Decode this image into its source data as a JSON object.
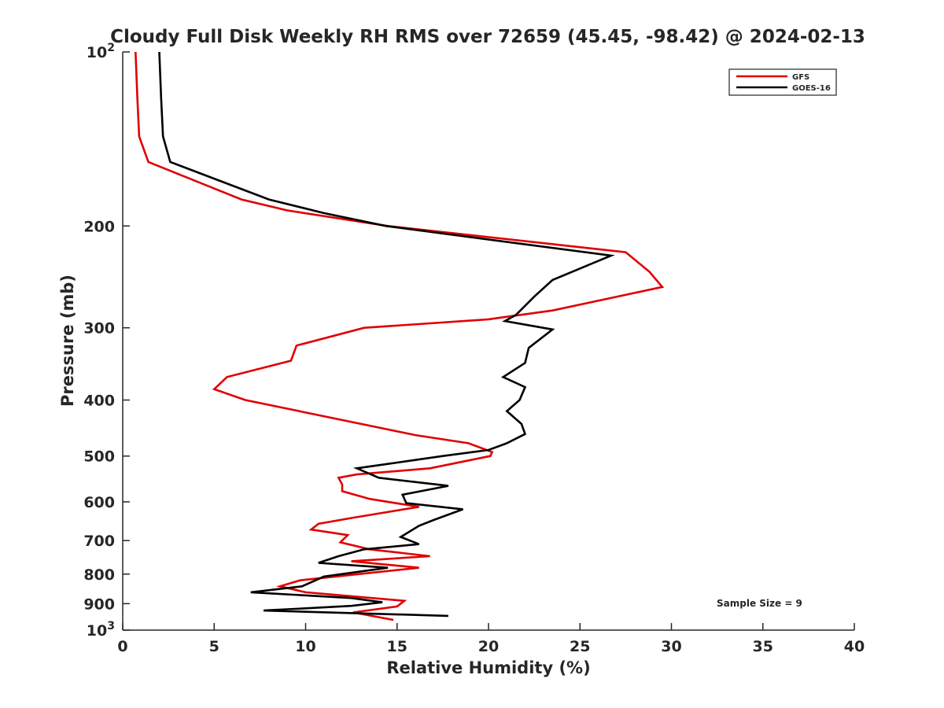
{
  "chart_data": {
    "type": "line",
    "title": "Cloudy Full Disk Weekly RH RMS over 72659 (45.45, -98.42) @ 2024-02-13",
    "xlabel": "Relative Humidity (%)",
    "ylabel": "Pressure (mb)",
    "xlim": [
      0,
      40
    ],
    "ylim": [
      100,
      1000
    ],
    "yscale": "log",
    "y_reversed": true,
    "grid": false,
    "legend_position": "top-right",
    "x_ticks": [
      "0",
      "5",
      "10",
      "15",
      "20",
      "25",
      "30",
      "35",
      "40"
    ],
    "y_ticks": [
      {
        "value": 100,
        "label": "10",
        "sup": "2"
      },
      {
        "value": 200,
        "label": "200",
        "sup": ""
      },
      {
        "value": 300,
        "label": "300",
        "sup": ""
      },
      {
        "value": 400,
        "label": "400",
        "sup": ""
      },
      {
        "value": 500,
        "label": "500",
        "sup": ""
      },
      {
        "value": 600,
        "label": "600",
        "sup": ""
      },
      {
        "value": 700,
        "label": "700",
        "sup": ""
      },
      {
        "value": 800,
        "label": "800",
        "sup": ""
      },
      {
        "value": 900,
        "label": "900",
        "sup": ""
      },
      {
        "value": 1000,
        "label": "10",
        "sup": "3"
      }
    ],
    "annotation": "Sample Size = 9",
    "series": [
      {
        "name": "GFS",
        "color": "#e00000",
        "points": [
          [
            0.7,
            100
          ],
          [
            0.8,
            120
          ],
          [
            0.9,
            140
          ],
          [
            1.4,
            155
          ],
          [
            6.5,
            180
          ],
          [
            9.0,
            188
          ],
          [
            14.5,
            200
          ],
          [
            27.5,
            222
          ],
          [
            28.8,
            240
          ],
          [
            29.5,
            255
          ],
          [
            23.5,
            280
          ],
          [
            20.0,
            290
          ],
          [
            13.2,
            300
          ],
          [
            9.5,
            322
          ],
          [
            9.2,
            342
          ],
          [
            5.7,
            365
          ],
          [
            5.0,
            383
          ],
          [
            6.7,
            400
          ],
          [
            16.0,
            460
          ],
          [
            18.9,
            475
          ],
          [
            20.2,
            492
          ],
          [
            20.1,
            500
          ],
          [
            16.8,
            525
          ],
          [
            12.8,
            538
          ],
          [
            11.8,
            545
          ],
          [
            12.0,
            560
          ],
          [
            12.0,
            575
          ],
          [
            13.5,
            593
          ],
          [
            16.2,
            612
          ],
          [
            12.5,
            640
          ],
          [
            10.7,
            655
          ],
          [
            10.3,
            670
          ],
          [
            12.3,
            685
          ],
          [
            11.9,
            705
          ],
          [
            13.5,
            725
          ],
          [
            16.8,
            745
          ],
          [
            12.5,
            760
          ],
          [
            16.2,
            780
          ],
          [
            9.7,
            820
          ],
          [
            8.6,
            840
          ],
          [
            10.0,
            860
          ],
          [
            15.4,
            890
          ],
          [
            15.0,
            910
          ],
          [
            12.6,
            932
          ],
          [
            14.8,
            960
          ]
        ]
      },
      {
        "name": "GOES-16",
        "color": "#000000",
        "points": [
          [
            2.0,
            100
          ],
          [
            2.1,
            120
          ],
          [
            2.2,
            140
          ],
          [
            2.6,
            155
          ],
          [
            8.0,
            180
          ],
          [
            11.0,
            190
          ],
          [
            14.4,
            200
          ],
          [
            26.7,
            225
          ],
          [
            23.5,
            248
          ],
          [
            22.5,
            265
          ],
          [
            21.5,
            285
          ],
          [
            20.9,
            292
          ],
          [
            23.5,
            302
          ],
          [
            22.2,
            325
          ],
          [
            22.0,
            345
          ],
          [
            20.8,
            365
          ],
          [
            22.0,
            380
          ],
          [
            21.7,
            400
          ],
          [
            21.0,
            418
          ],
          [
            21.8,
            440
          ],
          [
            22.0,
            458
          ],
          [
            21.0,
            475
          ],
          [
            20.0,
            488
          ],
          [
            17.5,
            500
          ],
          [
            12.8,
            525
          ],
          [
            14.0,
            545
          ],
          [
            17.8,
            563
          ],
          [
            15.3,
            583
          ],
          [
            15.5,
            603
          ],
          [
            18.6,
            618
          ],
          [
            17.0,
            645
          ],
          [
            16.2,
            660
          ],
          [
            15.2,
            690
          ],
          [
            16.2,
            710
          ],
          [
            13.2,
            725
          ],
          [
            11.8,
            745
          ],
          [
            10.7,
            765
          ],
          [
            14.5,
            780
          ],
          [
            11.0,
            808
          ],
          [
            9.8,
            840
          ],
          [
            7.0,
            860
          ],
          [
            12.5,
            880
          ],
          [
            14.2,
            895
          ],
          [
            12.5,
            908
          ],
          [
            7.7,
            925
          ],
          [
            17.8,
            945
          ]
        ]
      }
    ]
  }
}
